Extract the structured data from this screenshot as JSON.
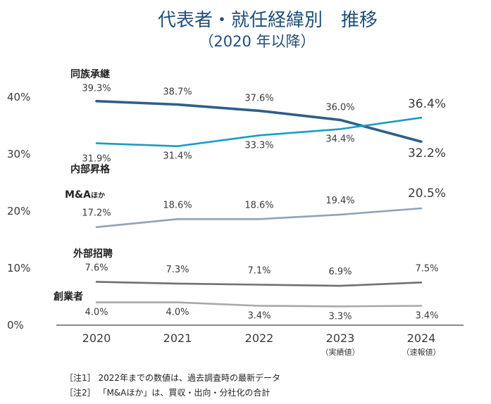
{
  "chart_data": {
    "type": "line",
    "title": "代表者・就任経緯別　推移",
    "subtitle": "（2020 年以降）",
    "categories": [
      "2020",
      "2021",
      "2022",
      "2023",
      "2024"
    ],
    "category_sublabels": [
      "",
      "",
      "",
      "（実績値）",
      "（速報値）"
    ],
    "ylim": [
      0,
      40
    ],
    "yticks": [
      "0%",
      "10%",
      "20%",
      "30%",
      "40%"
    ],
    "series": [
      {
        "name": "同族承継",
        "name_suffix": "",
        "color": "#2e5f8a",
        "values": [
          39.3,
          38.7,
          37.6,
          36.0,
          32.2
        ],
        "labels": [
          "39.3%",
          "38.7%",
          "37.6%",
          "36.0%",
          "32.2%"
        ]
      },
      {
        "name": "内部昇格",
        "name_suffix": "",
        "color": "#1b9cc4",
        "values": [
          31.9,
          31.4,
          33.3,
          34.4,
          36.4
        ],
        "labels": [
          "31.9%",
          "31.4%",
          "33.3%",
          "34.4%",
          "36.4%"
        ]
      },
      {
        "name": "M&A",
        "name_suffix": "ほか",
        "color": "#8fa3b8",
        "values": [
          17.2,
          18.6,
          18.6,
          19.4,
          20.5
        ],
        "labels": [
          "17.2%",
          "18.6%",
          "18.6%",
          "19.4%",
          "20.5%"
        ]
      },
      {
        "name": "外部招聘",
        "name_suffix": "",
        "color": "#707070",
        "values": [
          7.6,
          7.3,
          7.1,
          6.9,
          7.5
        ],
        "labels": [
          "7.6%",
          "7.3%",
          "7.1%",
          "6.9%",
          "7.5%"
        ]
      },
      {
        "name": "創業者",
        "name_suffix": "",
        "color": "#a8a8a8",
        "values": [
          4.0,
          4.0,
          3.4,
          3.3,
          3.4
        ],
        "labels": [
          "4.0%",
          "4.0%",
          "3.4%",
          "3.3%",
          "3.4%"
        ]
      }
    ],
    "notes": [
      "［注1］ 2022年までの数値は、過去調査時の最新データ",
      "［注2］ 「M&Aほか」は、買収・出向・分社化の合計"
    ]
  }
}
